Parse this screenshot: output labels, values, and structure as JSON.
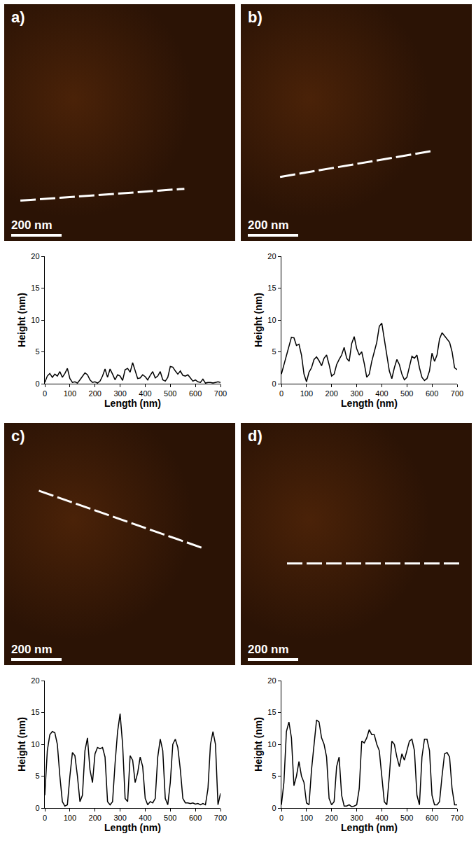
{
  "chart_data": [
    {
      "type": "line",
      "title": "a)",
      "annotations": [
        "200 nm"
      ],
      "x_label": "Length (nm)",
      "y_label": "Height (nm)",
      "color": "#000000",
      "x": [
        0,
        10,
        20,
        30,
        40,
        50,
        60,
        70,
        80,
        90,
        100,
        110,
        120,
        130,
        140,
        150,
        160,
        170,
        180,
        190,
        200,
        210,
        220,
        230,
        240,
        250,
        260,
        270,
        280,
        290,
        300,
        310,
        320,
        330,
        340,
        350,
        360,
        370,
        380,
        390,
        400,
        410,
        420,
        430,
        440,
        450,
        460,
        470,
        480,
        490,
        500,
        510,
        520,
        530,
        540,
        550,
        560,
        570,
        580,
        590,
        600,
        610,
        620,
        630,
        640,
        650,
        660,
        670,
        680,
        690,
        700
      ],
      "values": [
        0.2,
        1.2,
        1.6,
        1.0,
        1.5,
        1.2,
        1.9,
        1.0,
        1.6,
        2.4,
        0.8,
        0.2,
        0.3,
        0.1,
        0.6,
        1.2,
        1.7,
        1.4,
        0.6,
        0.2,
        0.3,
        0.1,
        0.4,
        1.2,
        2.3,
        1.0,
        2.3,
        1.5,
        0.6,
        1.4,
        1.2,
        0.5,
        2.2,
        2.4,
        1.8,
        3.3,
        1.9,
        0.8,
        0.9,
        1.4,
        1.1,
        0.6,
        1.3,
        1.9,
        0.9,
        1.2,
        1.9,
        0.6,
        0.4,
        1.0,
        2.7,
        2.6,
        2.0,
        1.5,
        2.0,
        1.3,
        1.2,
        1.4,
        0.9,
        0.4,
        0.6,
        0.3,
        0.2,
        0.7,
        0.1,
        0.2,
        0.2,
        0.1,
        0.2,
        0.3,
        0.2
      ],
      "xlim": [
        0,
        700
      ],
      "xticks": [
        0,
        100,
        200,
        300,
        400,
        500,
        600,
        700
      ],
      "ylim": [
        0,
        20
      ],
      "yticks": [
        0,
        5,
        10,
        15,
        20
      ],
      "grid": false
    },
    {
      "type": "line",
      "title": "b)",
      "annotations": [
        "200 nm"
      ],
      "x_label": "Length (nm)",
      "y_label": "Height (nm)",
      "color": "#000000",
      "x": [
        0,
        10,
        20,
        30,
        40,
        50,
        60,
        70,
        80,
        90,
        100,
        110,
        120,
        130,
        140,
        150,
        160,
        170,
        180,
        190,
        200,
        210,
        220,
        230,
        240,
        250,
        260,
        270,
        280,
        290,
        300,
        310,
        320,
        330,
        340,
        350,
        360,
        370,
        380,
        390,
        400,
        410,
        420,
        430,
        440,
        450,
        460,
        470,
        480,
        490,
        500,
        510,
        520,
        530,
        540,
        550,
        560,
        570,
        580,
        590,
        600,
        610,
        620,
        630,
        640,
        650,
        660,
        670,
        680,
        690,
        700
      ],
      "values": [
        1.5,
        3.0,
        4.5,
        6.0,
        7.3,
        7.2,
        6.0,
        6.2,
        4.5,
        1.5,
        0.3,
        1.8,
        2.5,
        3.8,
        4.2,
        3.6,
        2.8,
        4.0,
        4.5,
        3.0,
        1.2,
        1.5,
        3.0,
        3.8,
        4.5,
        5.7,
        4.0,
        3.5,
        6.3,
        7.4,
        5.5,
        4.5,
        5.0,
        3.2,
        1.0,
        1.5,
        3.5,
        5.0,
        6.5,
        9.0,
        9.5,
        7.0,
        4.5,
        2.0,
        0.8,
        2.5,
        3.8,
        3.0,
        1.5,
        0.6,
        1.0,
        2.5,
        4.3,
        4.0,
        4.5,
        2.5,
        1.0,
        0.5,
        0.8,
        2.0,
        4.8,
        3.5,
        4.5,
        7.0,
        8.0,
        7.5,
        7.0,
        6.5,
        5.0,
        2.5,
        2.2
      ],
      "xlim": [
        0,
        700
      ],
      "xticks": [
        0,
        100,
        200,
        300,
        400,
        500,
        600,
        700
      ],
      "ylim": [
        0,
        20
      ],
      "yticks": [
        0,
        5,
        10,
        15,
        20
      ],
      "grid": false
    },
    {
      "type": "line",
      "title": "c)",
      "annotations": [
        "200 nm"
      ],
      "x_label": "Length (nm)",
      "y_label": "Height (nm)",
      "color": "#000000",
      "x": [
        0,
        10,
        20,
        30,
        40,
        50,
        60,
        70,
        80,
        90,
        100,
        110,
        120,
        130,
        140,
        150,
        160,
        170,
        180,
        190,
        200,
        210,
        220,
        230,
        240,
        250,
        260,
        270,
        280,
        290,
        300,
        310,
        320,
        330,
        340,
        350,
        360,
        370,
        380,
        390,
        400,
        410,
        420,
        430,
        440,
        450,
        460,
        470,
        480,
        490,
        500,
        510,
        520,
        530,
        540,
        550,
        560,
        570,
        580,
        590,
        600,
        610,
        620,
        630,
        640,
        650,
        660,
        670,
        680,
        690,
        700
      ],
      "values": [
        2,
        9,
        11.5,
        12,
        11.8,
        10,
        5,
        1,
        0.3,
        0.5,
        5,
        8.7,
        8.2,
        5,
        1,
        2,
        9,
        11,
        6,
        4,
        8.5,
        9.5,
        9.3,
        9.5,
        8,
        1,
        0.5,
        1,
        7,
        12,
        14.8,
        10,
        1.5,
        1,
        8.2,
        7.5,
        4,
        5.5,
        8,
        6.5,
        1.5,
        0.5,
        1,
        0.8,
        1.5,
        8,
        10.8,
        9,
        1.5,
        0.5,
        4,
        10,
        10.8,
        9.5,
        6,
        1.5,
        0.8,
        0.8,
        0.7,
        0.8,
        0.6,
        0.7,
        0.5,
        0.7,
        0.5,
        3,
        10,
        12,
        10,
        0.5,
        2.3
      ],
      "xlim": [
        0,
        700
      ],
      "xticks": [
        0,
        100,
        200,
        300,
        400,
        500,
        600,
        700
      ],
      "ylim": [
        0,
        20
      ],
      "yticks": [
        0,
        5,
        10,
        15,
        20
      ],
      "grid": false
    },
    {
      "type": "line",
      "title": "d)",
      "annotations": [
        "200 nm"
      ],
      "x_label": "Length (nm)",
      "y_label": "Height (nm)",
      "color": "#000000",
      "x": [
        0,
        10,
        20,
        30,
        40,
        50,
        60,
        70,
        80,
        90,
        100,
        110,
        120,
        130,
        140,
        150,
        160,
        170,
        180,
        190,
        200,
        210,
        220,
        230,
        240,
        250,
        260,
        270,
        280,
        290,
        300,
        310,
        320,
        330,
        340,
        350,
        360,
        370,
        380,
        390,
        400,
        410,
        420,
        430,
        440,
        450,
        460,
        470,
        480,
        490,
        500,
        510,
        520,
        530,
        540,
        550,
        560,
        570,
        580,
        590,
        600,
        610,
        620,
        630,
        640,
        650,
        660,
        670,
        680,
        690,
        700
      ],
      "values": [
        0.5,
        4,
        12,
        13.5,
        11,
        3.5,
        5,
        7.3,
        5,
        4,
        0.8,
        0.5,
        6,
        10,
        13.8,
        13.5,
        11,
        10,
        8,
        1.5,
        0.5,
        1,
        6.5,
        8,
        2,
        0.3,
        0.3,
        0.5,
        0.2,
        0.3,
        0.5,
        3,
        10.5,
        10.2,
        11,
        12.3,
        11.5,
        11.5,
        10,
        9,
        5,
        1,
        0.5,
        5,
        10.5,
        10,
        8,
        6.5,
        8.5,
        7.5,
        9,
        10.5,
        10.8,
        9,
        2,
        0.5,
        8,
        10.8,
        10.8,
        9,
        2,
        0.5,
        0.5,
        1,
        5,
        8.5,
        8.7,
        8,
        3,
        0.5,
        0.5
      ],
      "xlim": [
        0,
        700
      ],
      "xticks": [
        0,
        100,
        200,
        300,
        400,
        500,
        600,
        700
      ],
      "ylim": [
        0,
        20
      ],
      "yticks": [
        0,
        5,
        10,
        15,
        20
      ],
      "grid": false
    }
  ]
}
